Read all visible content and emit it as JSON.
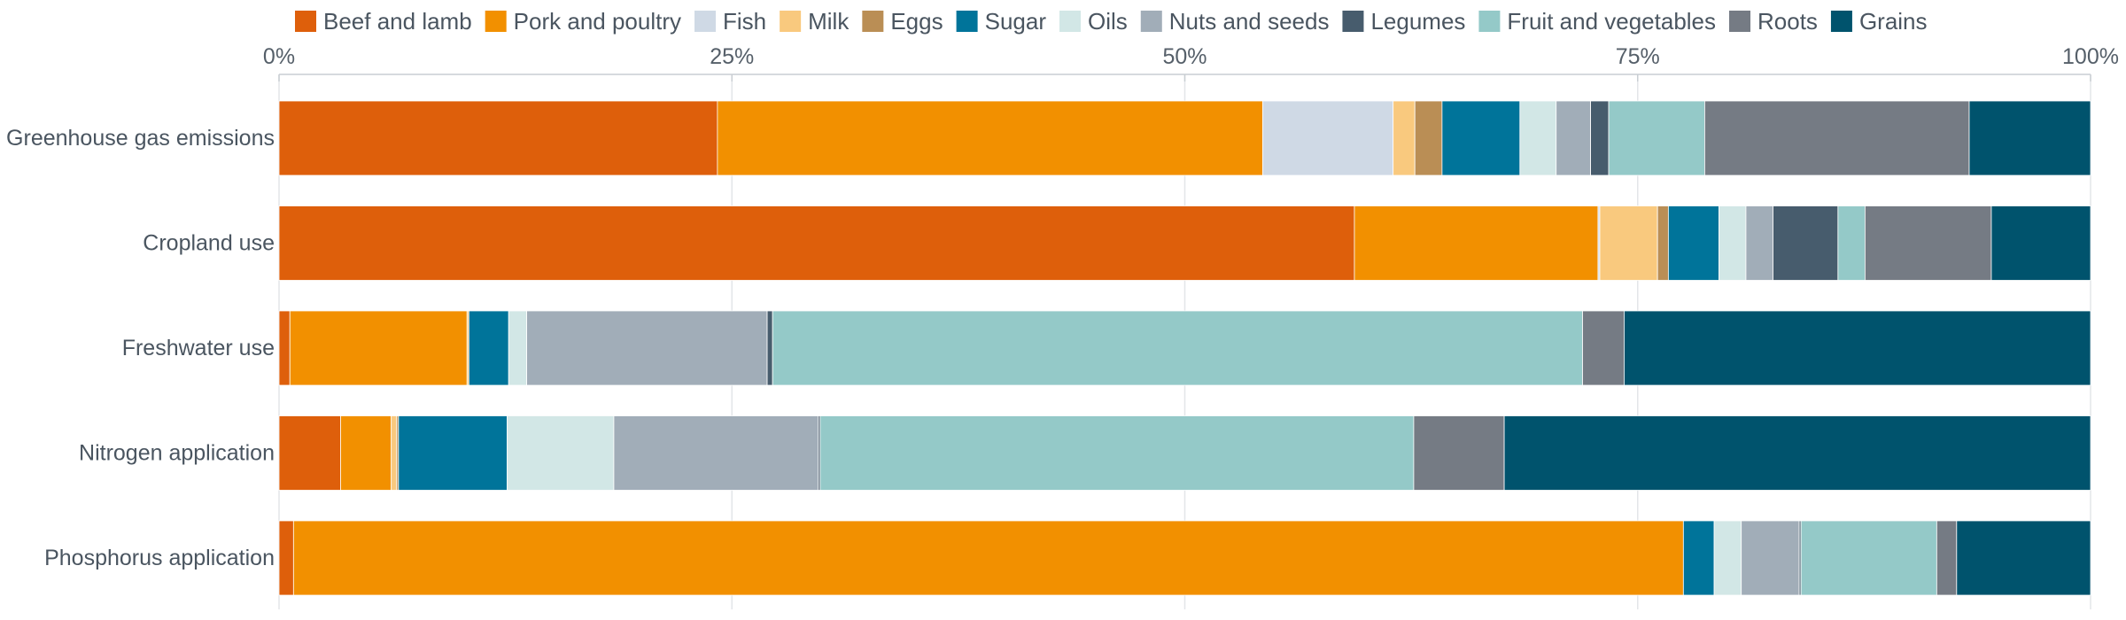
{
  "chart_data": {
    "type": "bar",
    "orientation": "horizontal",
    "stacked": true,
    "normalized": true,
    "categories": [
      "Greenhouse gas emissions",
      "Cropland use",
      "Freshwater use",
      "Nitrogen application",
      "Phosphorus application"
    ],
    "series": [
      {
        "name": "Beef and lamb",
        "color": "#DE5F0B",
        "values": [
          24.2,
          59.6,
          0.6,
          3.4,
          0.8
        ]
      },
      {
        "name": "Pork and poultry",
        "color": "#F29000",
        "values": [
          30.1,
          13.5,
          9.8,
          2.8,
          76.8
        ]
      },
      {
        "name": "Fish",
        "color": "#CFD9E5",
        "values": [
          7.2,
          0.1,
          0.0,
          0.0,
          0.0
        ]
      },
      {
        "name": "Milk",
        "color": "#F9C97E",
        "values": [
          1.2,
          3.2,
          0.1,
          0.3,
          0.0
        ]
      },
      {
        "name": "Eggs",
        "color": "#BA8E55",
        "values": [
          1.5,
          0.6,
          0.0,
          0.1,
          0.0
        ]
      },
      {
        "name": "Sugar",
        "color": "#00749A",
        "values": [
          4.3,
          2.8,
          2.2,
          6.0,
          1.7
        ]
      },
      {
        "name": "Oils",
        "color": "#D2E7E6",
        "values": [
          2.0,
          1.5,
          1.0,
          5.9,
          1.5
        ]
      },
      {
        "name": "Nuts and seeds",
        "color": "#A1ADB8",
        "values": [
          1.9,
          1.5,
          13.3,
          11.3,
          3.2
        ]
      },
      {
        "name": "Legumes",
        "color": "#475C6D",
        "values": [
          1.0,
          3.6,
          0.3,
          0.1,
          0.1
        ]
      },
      {
        "name": "Fruit and vegetables",
        "color": "#94C9C8",
        "values": [
          5.3,
          1.5,
          44.8,
          32.8,
          7.5
        ]
      },
      {
        "name": "Roots",
        "color": "#757B84",
        "values": [
          14.6,
          7.0,
          2.3,
          5.0,
          1.1
        ]
      },
      {
        "name": "Grains",
        "color": "#00536D",
        "values": [
          6.7,
          5.5,
          25.8,
          32.4,
          7.4
        ]
      }
    ],
    "xlim": [
      0,
      100
    ],
    "x_ticks": [
      "0%",
      "25%",
      "50%",
      "75%",
      "100%"
    ],
    "x_tick_values": [
      0,
      25,
      50,
      75,
      100
    ],
    "x_axis_position": "top",
    "grid": true,
    "legend_position": "top",
    "title": "",
    "xlabel": "",
    "ylabel": ""
  }
}
